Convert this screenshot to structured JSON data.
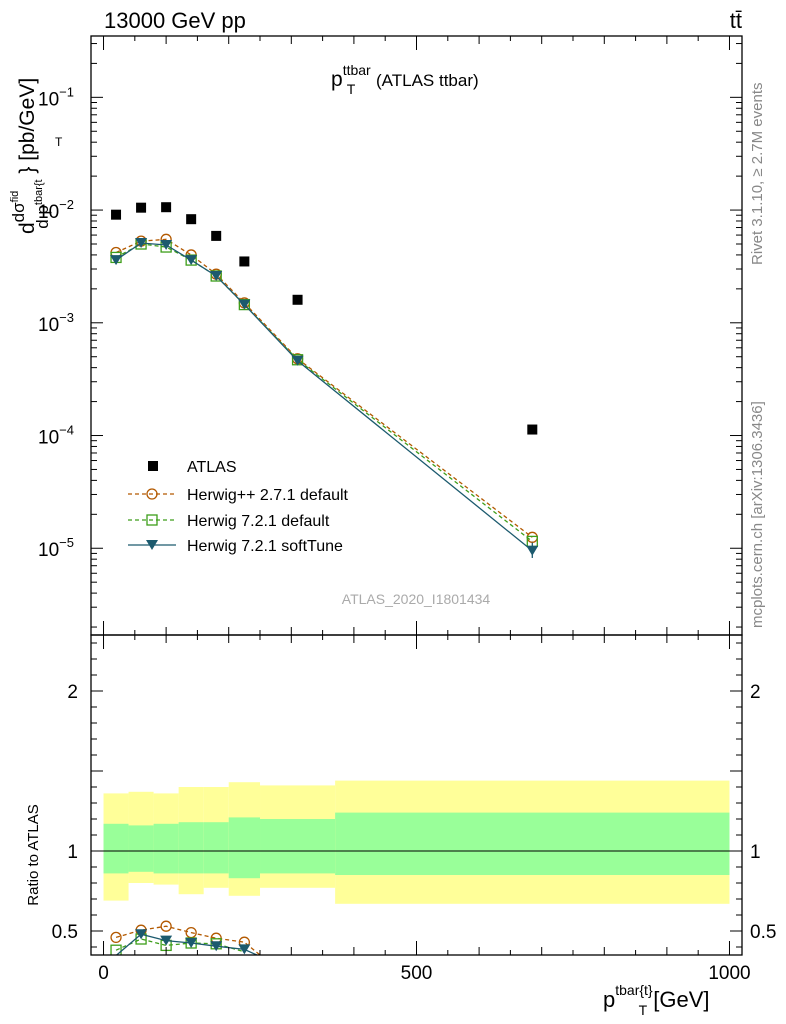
{
  "header": {
    "left": "13000 GeV pp",
    "right": "tt̄"
  },
  "side": {
    "rivet": "Rivet 3.1.10, ≥ 2.7M events",
    "mcplots": "mcplots.cern.ch [arXiv:1306.3436]"
  },
  "main": {
    "title_main": "p",
    "title_sup": "ttbar",
    "title_sub": "T",
    "title_rest": " (ATLAS ttbar)",
    "ylabel": "d dσ^fid / d p_T^tbar{t} } [pb/GeV]",
    "watermark": "ATLAS_2020_I1801434",
    "legend": [
      "ATLAS",
      "Herwig++ 2.7.1 default",
      "Herwig 7.2.1 default",
      "Herwig 7.2.1 softTune"
    ]
  },
  "ratio": {
    "ylabel": "Ratio to ATLAS"
  },
  "xaxis": {
    "label_main": "p",
    "label_sup": "tbar{t}",
    "label_sub": "T",
    "label_rest": " [GeV]"
  },
  "colors": {
    "data": "#000000",
    "herwigpp": "#b35900",
    "herwig721": "#3d9e1a",
    "softtune": "#1c5a6e",
    "band_inner": "#99ff99",
    "band_outer": "#ffff99"
  },
  "chart_data": {
    "type": "scatter",
    "x_range": [
      -20,
      1020
    ],
    "main_y_log": true,
    "main_y_range": [
      1.7e-06,
      0.35
    ],
    "main_y_ticks": [
      {
        "value": 0.1,
        "base": "10",
        "exp": "−1"
      },
      {
        "value": 0.01,
        "base": "10",
        "exp": "−2"
      },
      {
        "value": 0.001,
        "base": "10",
        "exp": "−3"
      },
      {
        "value": 0.0001,
        "base": "10",
        "exp": "−4"
      },
      {
        "value": 1e-05,
        "base": "10",
        "exp": "−5"
      }
    ],
    "ratio_y_range": [
      0.35,
      2.35
    ],
    "ratio_y_ticks": [
      {
        "value": 0.5,
        "label": "0.5"
      },
      {
        "value": 1,
        "label": "1"
      },
      {
        "value": 2,
        "label": "2"
      }
    ],
    "x_ticks": [
      {
        "value": 0,
        "label": "0"
      },
      {
        "value": 500,
        "label": "500"
      },
      {
        "value": 1000,
        "label": "1000"
      }
    ],
    "bins": [
      {
        "lo": 0,
        "hi": 40
      },
      {
        "lo": 40,
        "hi": 80
      },
      {
        "lo": 80,
        "hi": 120
      },
      {
        "lo": 120,
        "hi": 160
      },
      {
        "lo": 160,
        "hi": 200
      },
      {
        "lo": 200,
        "hi": 250
      },
      {
        "lo": 250,
        "hi": 370
      },
      {
        "lo": 370,
        "hi": 1000
      }
    ],
    "x": [
      20,
      60,
      100,
      140,
      180,
      225,
      310,
      685
    ],
    "data": [
      0.0091,
      0.0105,
      0.0106,
      0.0083,
      0.0059,
      0.0035,
      0.0016,
      0.000113
    ],
    "series": [
      {
        "name": "Herwig++ 2.7.1 default",
        "values": [
          0.0042,
          0.0053,
          0.0055,
          0.004,
          0.0027,
          0.0015,
          0.00048,
          1.25e-05
        ]
      },
      {
        "name": "Herwig 7.2.1 default",
        "values": [
          0.0038,
          0.005,
          0.0047,
          0.0036,
          0.0026,
          0.00145,
          0.00047,
          1.15e-05
        ]
      },
      {
        "name": "Herwig 7.2.1 softTune",
        "values": [
          0.0036,
          0.0051,
          0.0049,
          0.0036,
          0.0026,
          0.00145,
          0.00046,
          9.5e-06
        ]
      }
    ],
    "ratio_series": [
      {
        "name": "Herwig++ 2.7.1 default",
        "points": [
          [
            20,
            0.46
          ],
          [
            60,
            0.505
          ],
          [
            100,
            0.53
          ],
          [
            140,
            0.49
          ],
          [
            180,
            0.455
          ],
          [
            225,
            0.43
          ],
          [
            250,
            0.35
          ]
        ]
      },
      {
        "name": "Herwig 7.2.1 default",
        "points": [
          [
            20,
            0.38
          ],
          [
            60,
            0.45
          ],
          [
            100,
            0.41
          ],
          [
            140,
            0.425
          ],
          [
            180,
            0.42
          ],
          [
            225,
            0.37
          ]
        ]
      },
      {
        "name": "Herwig 7.2.1 softTune",
        "points": [
          [
            15,
            0.33
          ],
          [
            60,
            0.48
          ],
          [
            100,
            0.44
          ],
          [
            140,
            0.425
          ],
          [
            180,
            0.405
          ],
          [
            225,
            0.385
          ],
          [
            245,
            0.35
          ]
        ]
      }
    ],
    "band_inner": [
      [
        0.86,
        1.17
      ],
      [
        0.87,
        1.16
      ],
      [
        0.86,
        1.17
      ],
      [
        0.86,
        1.18
      ],
      [
        0.86,
        1.18
      ],
      [
        0.83,
        1.21
      ],
      [
        0.86,
        1.2
      ],
      [
        0.85,
        1.24
      ]
    ],
    "band_outer": [
      [
        0.69,
        1.36
      ],
      [
        0.8,
        1.37
      ],
      [
        0.79,
        1.36
      ],
      [
        0.73,
        1.4
      ],
      [
        0.77,
        1.4
      ],
      [
        0.72,
        1.43
      ],
      [
        0.77,
        1.41
      ],
      [
        0.67,
        1.44
      ]
    ]
  }
}
